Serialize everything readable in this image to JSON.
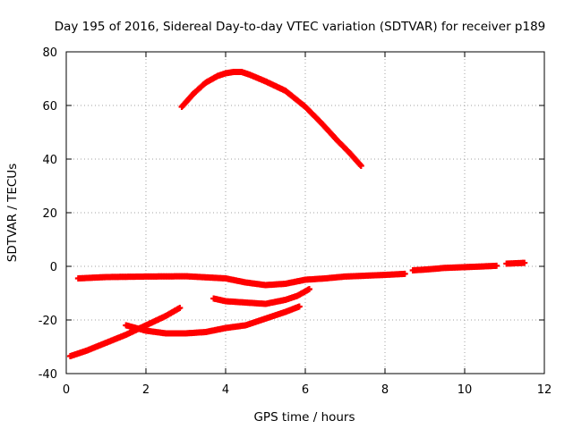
{
  "chart_data": {
    "type": "scatter",
    "title": "Day 195 of 2016, Sidereal Day-to-day VTEC variation (SDTVAR) for receiver p189",
    "xlabel": "GPS time / hours",
    "ylabel": "SDTVAR / TECUs",
    "xlim": [
      0,
      12
    ],
    "ylim": [
      -40,
      80
    ],
    "x_ticks": [
      0,
      2,
      4,
      6,
      8,
      10,
      12
    ],
    "y_ticks": [
      -40,
      -20,
      0,
      20,
      40,
      60,
      80
    ],
    "grid": true,
    "legend": "none",
    "marker": "plus",
    "color": "#ff0000",
    "series": [
      {
        "x": [
          2.9,
          3.2,
          3.5,
          3.8,
          4.0,
          4.2,
          4.4,
          4.6,
          5.0,
          5.5,
          6.0,
          6.4,
          6.8,
          7.1,
          7.4
        ],
        "y": [
          59.5,
          64.5,
          68.5,
          71,
          72,
          72.5,
          72.5,
          71.5,
          69,
          65.5,
          59.5,
          53.5,
          47,
          42.5,
          37.5
        ]
      },
      {
        "x": [
          0.3,
          1.0,
          2.0,
          3.0,
          4.0,
          4.5,
          5.0,
          5.5,
          6.0,
          6.5,
          7.0,
          7.5,
          8.0,
          8.5
        ],
        "y": [
          -4.5,
          -4,
          -3.8,
          -3.7,
          -4.5,
          -6,
          -7,
          -6.5,
          -5,
          -4.5,
          -3.8,
          -3.5,
          -3.2,
          -2.8
        ]
      },
      {
        "x": [
          8.7,
          9.0,
          9.5,
          10.0,
          10.5,
          10.8
        ],
        "y": [
          -1.5,
          -1.2,
          -0.6,
          -0.3,
          0,
          0.2
        ]
      },
      {
        "x": [
          11.05,
          11.2,
          11.35,
          11.5
        ],
        "y": [
          1,
          1.1,
          1.2,
          1.3
        ]
      },
      {
        "x": [
          0.1,
          0.5,
          1.0,
          1.5,
          2.0,
          2.5,
          2.85
        ],
        "y": [
          -33.5,
          -31.5,
          -28.5,
          -25.5,
          -22,
          -18.5,
          -15.5
        ]
      },
      {
        "x": [
          1.5,
          2.0,
          2.5,
          3.0,
          3.5,
          4.0,
          4.5,
          5.0,
          5.5,
          5.85
        ],
        "y": [
          -22,
          -24,
          -25,
          -25,
          -24.5,
          -23,
          -22,
          -19.5,
          -17,
          -15
        ]
      },
      {
        "x": [
          3.7,
          4.0,
          4.5,
          5.0,
          5.5,
          5.8,
          6.1
        ],
        "y": [
          -12,
          -13,
          -13.5,
          -14,
          -12.5,
          -11,
          -8.5
        ]
      }
    ]
  }
}
